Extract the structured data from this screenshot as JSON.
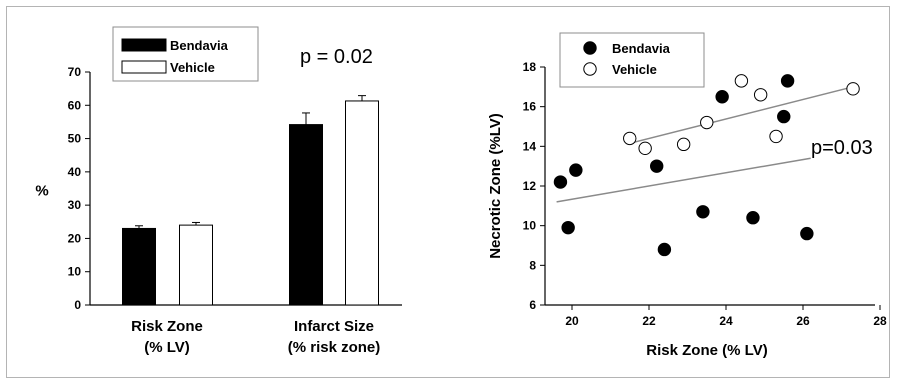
{
  "chart_data": [
    {
      "type": "bar",
      "categories": [
        [
          "Risk Zone",
          "(% LV)"
        ],
        [
          "Infarct Size",
          "(% risk zone)"
        ]
      ],
      "series": [
        {
          "name": "Bendavia",
          "values": [
            23,
            54.2
          ],
          "errors": [
            0.8,
            3.5
          ],
          "color": "#000000"
        },
        {
          "name": "Vehicle",
          "values": [
            24,
            61.3
          ],
          "errors": [
            0.8,
            1.6
          ],
          "color": "#ffffff"
        }
      ],
      "ylabel": "%",
      "ylim": [
        0,
        70
      ],
      "yticks": [
        0,
        10,
        20,
        30,
        40,
        50,
        60,
        70
      ],
      "legend": "top-left",
      "annotations": [
        {
          "text": "p = 0.02",
          "near": "Infarct Size"
        }
      ]
    },
    {
      "type": "scatter",
      "series": [
        {
          "name": "Bendavia",
          "marker": "filled-circle",
          "points": [
            [
              19.7,
              12.2
            ],
            [
              19.9,
              9.9
            ],
            [
              20.1,
              12.8
            ],
            [
              22.2,
              13.0
            ],
            [
              22.4,
              8.8
            ],
            [
              23.4,
              10.7
            ],
            [
              23.9,
              16.5
            ],
            [
              24.7,
              10.4
            ],
            [
              25.5,
              15.5
            ],
            [
              25.6,
              17.3
            ],
            [
              26.1,
              9.6
            ]
          ],
          "trendline": [
            [
              19.6,
              11.2
            ],
            [
              26.2,
              13.4
            ]
          ]
        },
        {
          "name": "Vehicle",
          "marker": "open-circle",
          "points": [
            [
              21.5,
              14.4
            ],
            [
              21.9,
              13.9
            ],
            [
              22.9,
              14.1
            ],
            [
              23.5,
              15.2
            ],
            [
              24.4,
              17.3
            ],
            [
              24.9,
              16.6
            ],
            [
              25.3,
              14.5
            ],
            [
              27.3,
              16.9
            ]
          ],
          "trendline": [
            [
              21.6,
              14.2
            ],
            [
              27.3,
              17.0
            ]
          ]
        }
      ],
      "xlabel": "Risk Zone (% LV)",
      "ylabel": "Necrotic Zone (%LV)",
      "xlim": [
        19,
        28
      ],
      "ylim": [
        6,
        18
      ],
      "xticks": [
        20,
        22,
        24,
        26,
        28
      ],
      "yticks": [
        6,
        8,
        10,
        12,
        14,
        16,
        18
      ],
      "legend": "top-left",
      "annotations": [
        {
          "text": "p=0.03",
          "near": "Bendavia trendline"
        }
      ]
    }
  ]
}
